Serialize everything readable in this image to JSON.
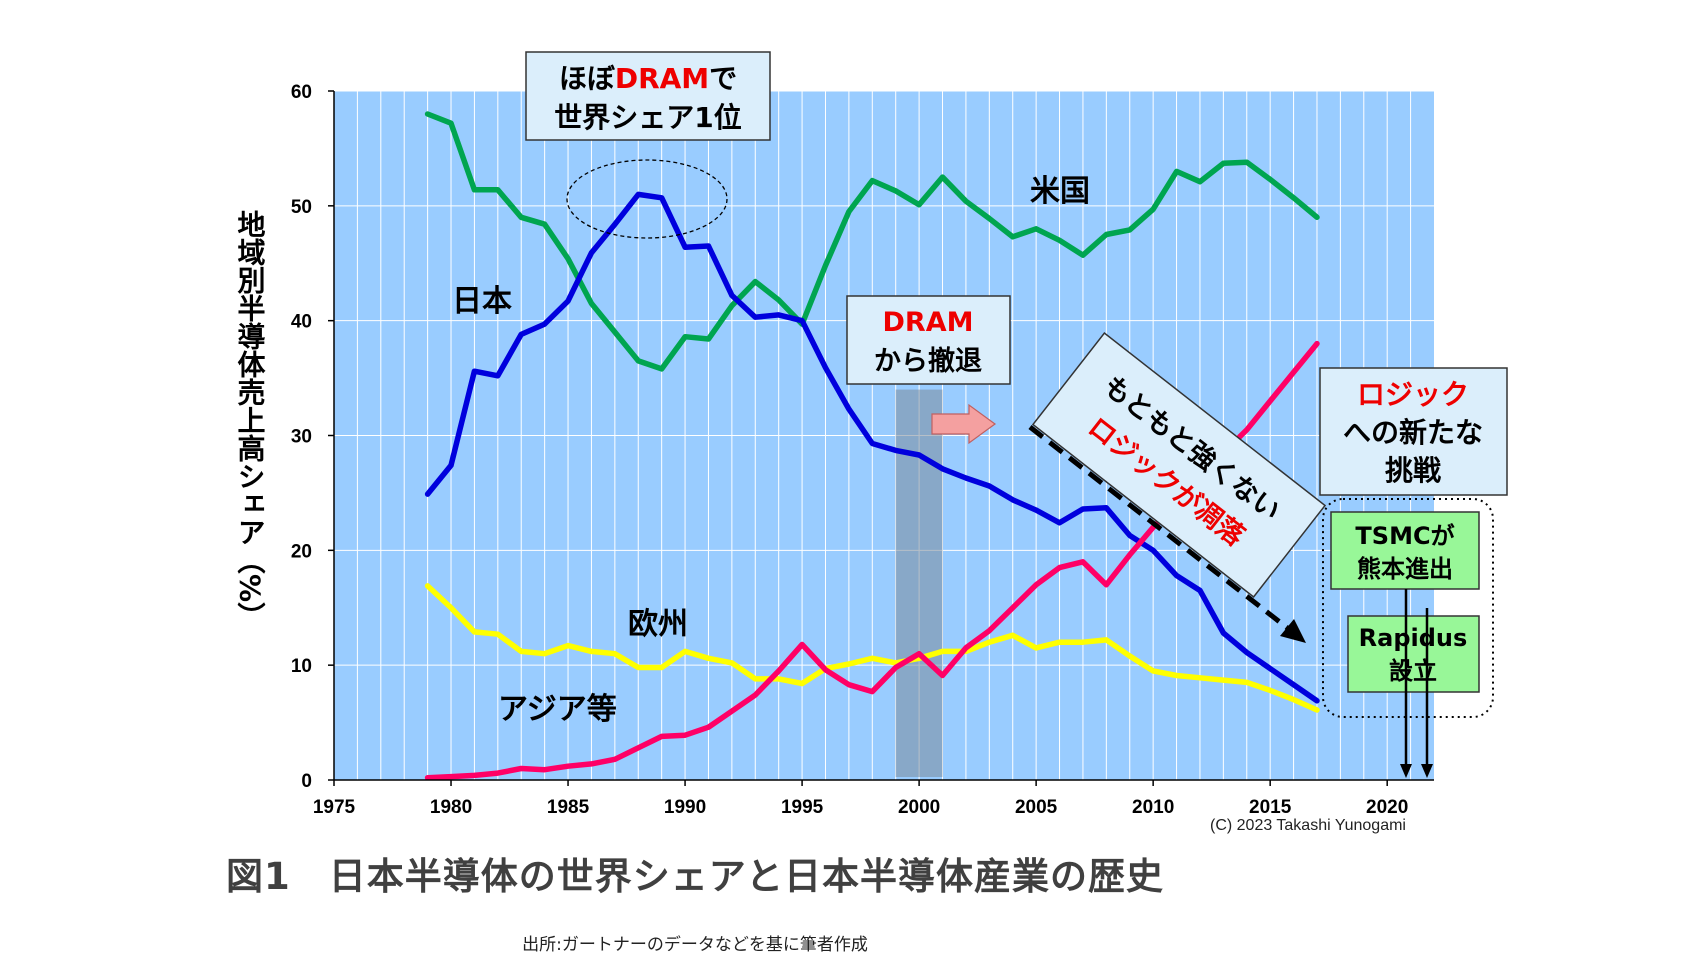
{
  "chart_data": {
    "type": "line",
    "title": "図1　日本半導体の世界シェアと日本半導体産業の歴史",
    "ylabel": "地域別半導体売上高シェア（%）",
    "xlabel": "",
    "xlim": [
      1975,
      2022
    ],
    "ylim": [
      0,
      60
    ],
    "xticks": [
      1975,
      1980,
      1985,
      1990,
      1995,
      2000,
      2005,
      2010,
      2015,
      2020
    ],
    "yticks": [
      0,
      10,
      20,
      30,
      40,
      50,
      60
    ],
    "grid": true,
    "series": [
      {
        "name": "米国",
        "color": "#00a550",
        "x": [
          1979,
          1980,
          1981,
          1982,
          1983,
          1984,
          1985,
          1986,
          1987,
          1988,
          1989,
          1990,
          1991,
          1992,
          1993,
          1994,
          1995,
          1996,
          1997,
          1998,
          1999,
          2000,
          2001,
          2002,
          2003,
          2004,
          2005,
          2006,
          2007,
          2008,
          2009,
          2010,
          2011,
          2012,
          2013,
          2014,
          2015,
          2016,
          2017
        ],
        "y": [
          58,
          57.2,
          51.4,
          51.4,
          49,
          48.4,
          45.4,
          41.5,
          39,
          36.5,
          35.8,
          38.6,
          38.4,
          41.3,
          43.4,
          41.8,
          39.7,
          44.8,
          49.5,
          52.2,
          51.3,
          50.1,
          52.5,
          50.4,
          48.9,
          47.3,
          48,
          47,
          45.7,
          47.5,
          47.9,
          49.7,
          53,
          52.1,
          53.7,
          53.8,
          52.3,
          50.7,
          49
        ]
      },
      {
        "name": "日本",
        "color": "#0000dd",
        "x": [
          1979,
          1980,
          1981,
          1982,
          1983,
          1984,
          1985,
          1986,
          1987,
          1988,
          1989,
          1990,
          1991,
          1992,
          1993,
          1994,
          1995,
          1996,
          1997,
          1998,
          1999,
          2000,
          2001,
          2002,
          2003,
          2004,
          2005,
          2006,
          2007,
          2008,
          2009,
          2010,
          2011,
          2012,
          2013,
          2014,
          2015,
          2016,
          2017
        ],
        "y": [
          24.9,
          27.4,
          35.6,
          35.2,
          38.8,
          39.7,
          41.7,
          45.9,
          48.4,
          51,
          50.7,
          46.4,
          46.5,
          42.2,
          40.3,
          40.5,
          40,
          35.9,
          32.3,
          29.3,
          28.7,
          28.3,
          27.1,
          26.3,
          25.6,
          24.4,
          23.5,
          22.4,
          23.6,
          23.7,
          21.3,
          20,
          17.8,
          16.5,
          12.8,
          11.1,
          9.7,
          8.3,
          6.9
        ]
      },
      {
        "name": "欧州",
        "color": "#ffff00",
        "x": [
          1979,
          1980,
          1981,
          1982,
          1983,
          1984,
          1985,
          1986,
          1987,
          1988,
          1989,
          1990,
          1991,
          1992,
          1993,
          1994,
          1995,
          1996,
          1997,
          1998,
          1999,
          2000,
          2001,
          2002,
          2003,
          2004,
          2005,
          2006,
          2007,
          2008,
          2009,
          2010,
          2011,
          2012,
          2013,
          2014,
          2015,
          2016,
          2017
        ],
        "y": [
          16.9,
          15,
          12.9,
          12.7,
          11.2,
          11,
          11.7,
          11.2,
          11,
          9.8,
          9.8,
          11.2,
          10.6,
          10.2,
          8.8,
          8.8,
          8.4,
          9.7,
          10.1,
          10.6,
          10.2,
          10.6,
          11.2,
          11.2,
          12,
          12.6,
          11.5,
          12,
          12,
          12.2,
          10.8,
          9.5,
          9.1,
          8.9,
          8.7,
          8.5,
          7.8,
          7,
          6.1
        ]
      },
      {
        "name": "アジア等",
        "color": "#ff0066",
        "x": [
          1979,
          1980,
          1981,
          1982,
          1983,
          1984,
          1985,
          1986,
          1987,
          1988,
          1989,
          1990,
          1991,
          1992,
          1993,
          1994,
          1995,
          1996,
          1997,
          1998,
          1999,
          2000,
          2001,
          2002,
          2003,
          2004,
          2005,
          2006,
          2007,
          2008,
          2009,
          2010,
          2011,
          2012,
          2013,
          2014,
          2015,
          2016,
          2017
        ],
        "y": [
          0.2,
          0.3,
          0.4,
          0.6,
          1,
          0.9,
          1.2,
          1.4,
          1.8,
          2.8,
          3.8,
          3.9,
          4.6,
          6,
          7.4,
          9.5,
          11.8,
          9.6,
          8.3,
          7.7,
          9.8,
          11,
          9.1,
          11.5,
          13,
          15,
          17,
          18.5,
          19,
          17,
          19.6,
          22,
          24,
          26,
          28.5,
          30.5,
          33,
          35.5,
          38
        ]
      }
    ],
    "labels": {
      "usa": "米国",
      "japan": "日本",
      "europe": "欧州",
      "asia": "アジア等"
    },
    "annotations": {
      "box1_line1_pre": "ほぼ",
      "box1_line1_red": "DRAM",
      "box1_line1_post": "で",
      "box1_line2": "世界シェア1位",
      "box2_line1": "DRAM",
      "box2_line2": "から撤退",
      "diag_line1": "もともと強くない",
      "diag_line2": "ロジックが凋落",
      "box3_line1": "ロジック",
      "box3_line2": "への新たな",
      "box3_line3": "挑戦",
      "tsmc_line1": "TSMCが",
      "tsmc_line2": "熊本進出",
      "rapidus_line1": "Rapidus",
      "rapidus_line2": "設立"
    },
    "dram_exit_band": [
      1999,
      2001
    ]
  },
  "credit": "(C) 2023 Takashi Yunogami",
  "source": "出所:ガートナーのデータなどを基に筆者作成",
  "colors": {
    "plot_bg": "#99ccff",
    "grid": "#ffffff",
    "red_text": "#ee0000",
    "box_bg": "#dbeefb",
    "green_box_bg": "#98f798"
  }
}
